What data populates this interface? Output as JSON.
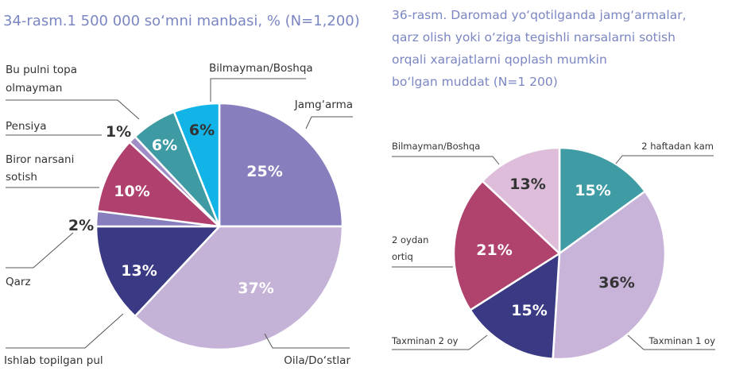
{
  "chart_data": [
    {
      "type": "pie",
      "title": "34-rasm.1 500 000 so‘mni manbasi, % (N=1,200)",
      "slices": [
        {
          "label": "Jamg‘arma",
          "value": 25,
          "display": "25%",
          "color": "#877fbd"
        },
        {
          "label": "Oila/Do‘stlar",
          "value": 37,
          "display": "37%",
          "color": "#c5b2d7"
        },
        {
          "label": "Ishlab topilgan pul",
          "value": 13,
          "display": "13%",
          "color": "#3a3984"
        },
        {
          "label": "Qarz",
          "value": 2,
          "display": "2%",
          "color": "#877fbd"
        },
        {
          "label": "Biror narsani sotish",
          "label_lines": [
            "Biror narsani",
            "sotish"
          ],
          "value": 10,
          "display": "10%",
          "color": "#b0406d"
        },
        {
          "label": "Pensiya",
          "value": 1,
          "display": "1%",
          "color": "#a08cc6"
        },
        {
          "label": "Bu pulni topa olmayman",
          "label_lines": [
            "Bu pulni topa",
            "olmayman"
          ],
          "value": 6,
          "display": "6%",
          "color": "#3e9aa3"
        },
        {
          "label": "Bilmayman/Boshqa",
          "value": 6,
          "display": "6%",
          "color": "#12b3e6"
        }
      ]
    },
    {
      "type": "pie",
      "title": "36-rasm. Daromad yo‘qotilganda jamg‘armalar, qarz olish yoki o‘ziga tegishli narsalarni sotish orqali xarajatlarni qoplash mumkin bo‘lgan muddat (N=1 200)",
      "title_lines": [
        "36-rasm. Daromad yo‘qotilganda jamg‘armalar,",
        "qarz olish yoki o‘ziga tegishli narsalarni sotish",
        "orqali xarajatlarni qoplash mumkin",
        "bo‘lgan muddat (N=1 200)"
      ],
      "slices": [
        {
          "label": "2 haftadan kam",
          "value": 15,
          "display": "15%",
          "color": "#3f9ba4"
        },
        {
          "label": "Taxminan 1 oy",
          "value": 36,
          "display": "36%",
          "color": "#c8b4d8"
        },
        {
          "label": "Taxminan 2 oy",
          "value": 15,
          "display": "15%",
          "color": "#3a3984"
        },
        {
          "label": "2 oydan ortiq",
          "label_lines": [
            "2 oydan",
            "ortiq"
          ],
          "value": 21,
          "display": "21%",
          "color": "#b0426e"
        },
        {
          "label": "Bilmayman/Boshqa",
          "value": 13,
          "display": "13%",
          "color": "#ddbdda"
        }
      ]
    }
  ]
}
